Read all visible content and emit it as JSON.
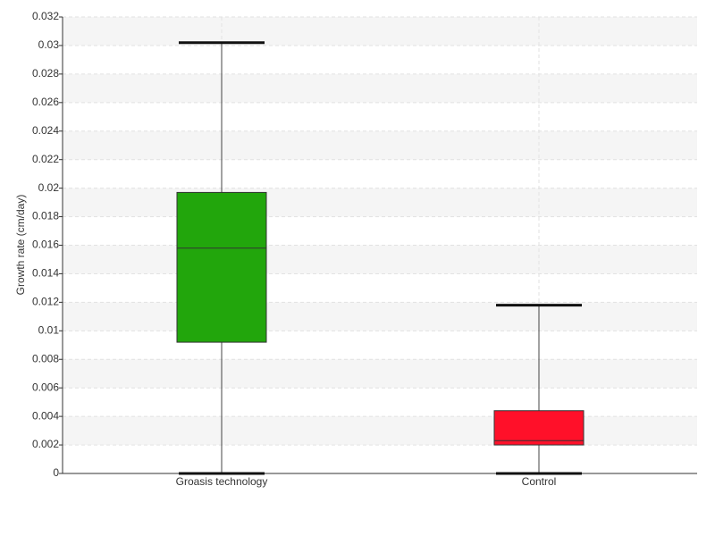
{
  "chart_data": {
    "type": "box",
    "y_label": "Growth rate (cm/day)",
    "categories": [
      "Groasis technology",
      "Control"
    ],
    "boxes": [
      {
        "min": 0,
        "q1": 0.0092,
        "median": 0.0158,
        "q3": 0.0197,
        "max": 0.0302,
        "color": "#22a60c"
      },
      {
        "min": 0,
        "q1": 0.002,
        "median": 0.0023,
        "q3": 0.0044,
        "max": 0.0118,
        "color": "#ff1029"
      }
    ],
    "ylim": [
      0,
      0.032
    ],
    "yticks": [
      0,
      0.002,
      0.004,
      0.006,
      0.008,
      0.01,
      0.012,
      0.014,
      0.016,
      0.018,
      0.02,
      0.022,
      0.024,
      0.026,
      0.028,
      0.03,
      0.032
    ],
    "grid": true
  }
}
